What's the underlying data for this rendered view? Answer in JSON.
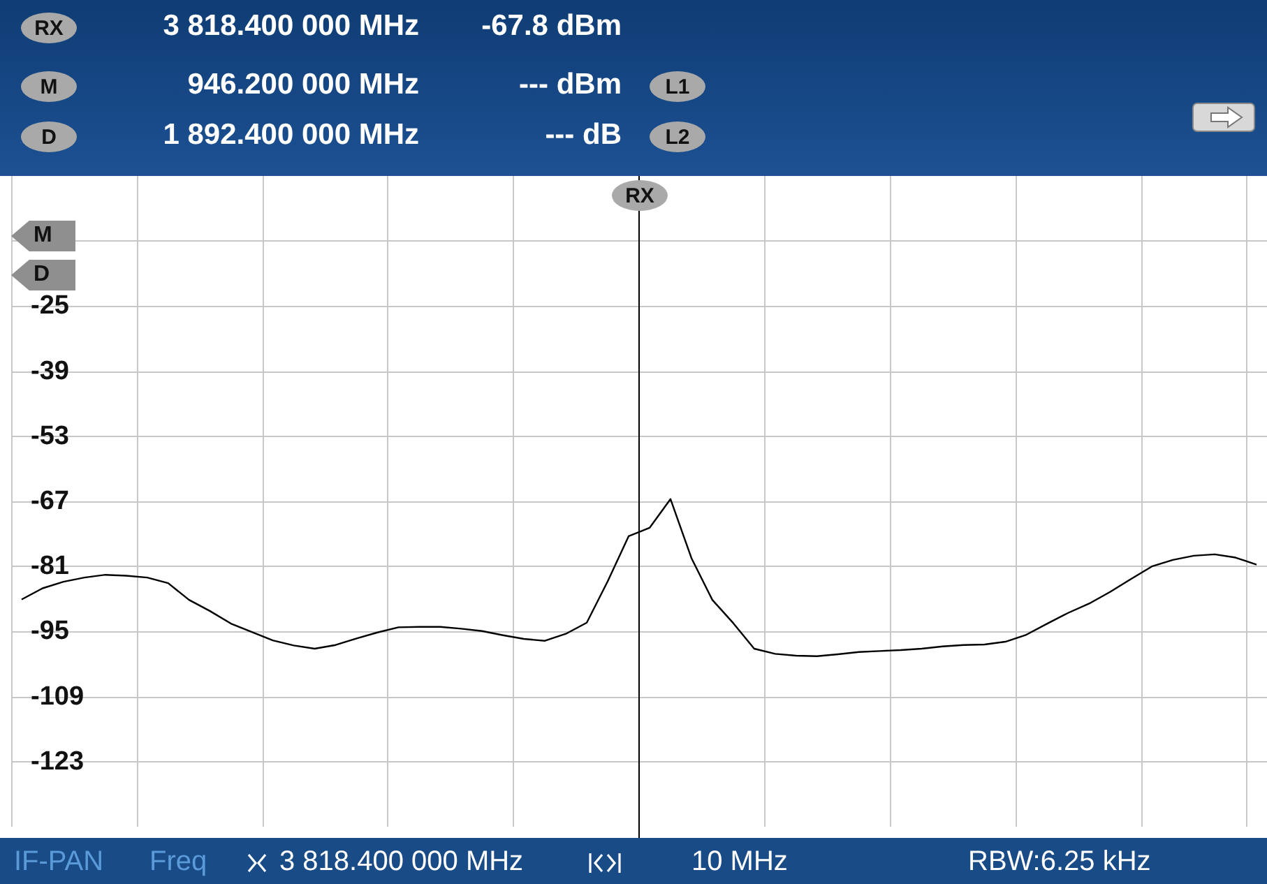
{
  "chart_data": {
    "type": "line",
    "categories": [
      null,
      null,
      null,
      null,
      null,
      null,
      null,
      null,
      null,
      null,
      null,
      null,
      null,
      null,
      null,
      null,
      null,
      null,
      null,
      null,
      null,
      null,
      null,
      null,
      null,
      null,
      null,
      null,
      null,
      null,
      null,
      null,
      null,
      null,
      null,
      null,
      null,
      null,
      null,
      null,
      null,
      null,
      null,
      null,
      null,
      null,
      null,
      null,
      null,
      null,
      null,
      null,
      null,
      null,
      null,
      null,
      null,
      null,
      null,
      null
    ],
    "series": [
      {
        "color": "#000000",
        "values": [
          -88.1,
          -85.7,
          -84.3,
          -83.4,
          -82.8,
          -83.0,
          -83.4,
          -84.6,
          -88.2,
          -90.6,
          -93.3,
          -95.1,
          -96.9,
          -98.0,
          -98.7,
          -97.9,
          -96.5,
          -95.2,
          -94.1,
          -94.0,
          -94.0,
          -94.4,
          -94.9,
          -95.8,
          -96.6,
          -97.0,
          -95.5,
          -93.1,
          -84.2,
          -74.5,
          -72.7,
          -66.5,
          -79.2,
          -88.2,
          -93.2,
          -98.7,
          -99.8,
          -100.2,
          -100.3,
          -99.9,
          -99.4,
          -99.2,
          -99.0,
          -98.7,
          -98.2,
          -97.9,
          -97.8,
          -97.2,
          -95.7,
          -93.3,
          -91.0,
          -89.0,
          -86.5,
          -83.7,
          -81.0,
          -79.6,
          -78.7,
          -78.4,
          -79.1,
          -80.6
        ]
      }
    ],
    "ylim": [
      -137,
      3
    ],
    "yticks": [
      {
        "value": -11,
        "label": null
      },
      -25,
      -39,
      -53,
      -67,
      -81,
      -95,
      -109,
      -123
    ],
    "annotations": [
      "RX",
      "3 818.400 000 MHz",
      "-67.8 dBm",
      "M",
      "946.200 000 MHz",
      "--- dBm",
      "L1",
      "D",
      "1 892.400 000 MHz",
      "--- dB",
      "L2",
      "M",
      "D",
      "IF-PAN",
      "Freq",
      "3 818.400 000 MHz",
      "10 MHz",
      "RBW:6.25 kHz",
      "RX"
    ],
    "grid": true,
    "marker": "none",
    "line_style": "solid"
  }
}
